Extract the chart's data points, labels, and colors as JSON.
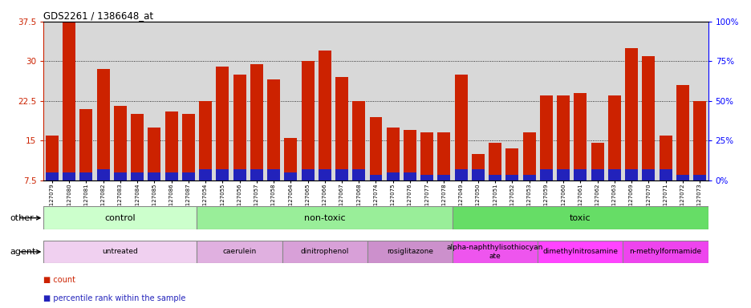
{
  "title": "GDS2261 / 1386648_at",
  "samples": [
    "GSM127079",
    "GSM127080",
    "GSM127081",
    "GSM127082",
    "GSM127083",
    "GSM127084",
    "GSM127085",
    "GSM127086",
    "GSM127087",
    "GSM127054",
    "GSM127055",
    "GSM127056",
    "GSM127057",
    "GSM127058",
    "GSM127064",
    "GSM127065",
    "GSM127066",
    "GSM127067",
    "GSM127068",
    "GSM127074",
    "GSM127075",
    "GSM127076",
    "GSM127077",
    "GSM127078",
    "GSM127049",
    "GSM127050",
    "GSM127051",
    "GSM127052",
    "GSM127053",
    "GSM127059",
    "GSM127060",
    "GSM127061",
    "GSM127062",
    "GSM127063",
    "GSM127069",
    "GSM127070",
    "GSM127071",
    "GSM127072",
    "GSM127073"
  ],
  "count_values": [
    16.0,
    37.5,
    21.0,
    28.5,
    21.5,
    20.0,
    17.5,
    20.5,
    20.0,
    22.5,
    29.0,
    27.5,
    29.5,
    26.5,
    15.5,
    30.0,
    32.0,
    27.0,
    22.5,
    19.5,
    17.5,
    17.0,
    16.5,
    16.5,
    27.5,
    12.5,
    14.5,
    13.5,
    16.5,
    23.5,
    23.5,
    24.0,
    14.5,
    23.5,
    32.5,
    31.0,
    16.0,
    25.5,
    22.5
  ],
  "percentile_values": [
    9.0,
    9.0,
    9.0,
    9.5,
    9.0,
    9.0,
    9.0,
    9.0,
    9.0,
    9.5,
    9.5,
    9.5,
    9.5,
    9.5,
    9.0,
    9.5,
    9.5,
    9.5,
    9.5,
    8.5,
    9.0,
    9.0,
    8.5,
    8.5,
    9.5,
    9.5,
    8.5,
    8.5,
    8.5,
    9.5,
    9.5,
    9.5,
    9.5,
    9.5,
    9.5,
    9.5,
    9.5,
    8.5,
    8.5
  ],
  "ymin": 7.5,
  "ymax": 37.5,
  "yticks": [
    7.5,
    15.0,
    22.5,
    30.0,
    37.5
  ],
  "y2ticks": [
    0,
    25,
    50,
    75,
    100
  ],
  "bar_color": "#cc2200",
  "percentile_color": "#2222bb",
  "bg_color": "#d8d8d8",
  "other_groups": [
    {
      "label": "control",
      "start": 0,
      "end": 9,
      "color": "#ccffcc"
    },
    {
      "label": "non-toxic",
      "start": 9,
      "end": 24,
      "color": "#99ee99"
    },
    {
      "label": "toxic",
      "start": 24,
      "end": 39,
      "color": "#66dd66"
    }
  ],
  "agent_groups": [
    {
      "label": "untreated",
      "start": 0,
      "end": 9,
      "color": "#f0d0f0"
    },
    {
      "label": "caerulein",
      "start": 9,
      "end": 14,
      "color": "#e0b0e0"
    },
    {
      "label": "dinitrophenol",
      "start": 14,
      "end": 19,
      "color": "#d8a0d8"
    },
    {
      "label": "rosiglitazone",
      "start": 19,
      "end": 24,
      "color": "#cc90cc"
    },
    {
      "label": "alpha-naphthylisothiocyan\nate",
      "start": 24,
      "end": 29,
      "color": "#ee55ee"
    },
    {
      "label": "dimethylnitrosamine",
      "start": 29,
      "end": 34,
      "color": "#ff44ff"
    },
    {
      "label": "n-methylformamide",
      "start": 34,
      "end": 39,
      "color": "#ee44ee"
    }
  ]
}
